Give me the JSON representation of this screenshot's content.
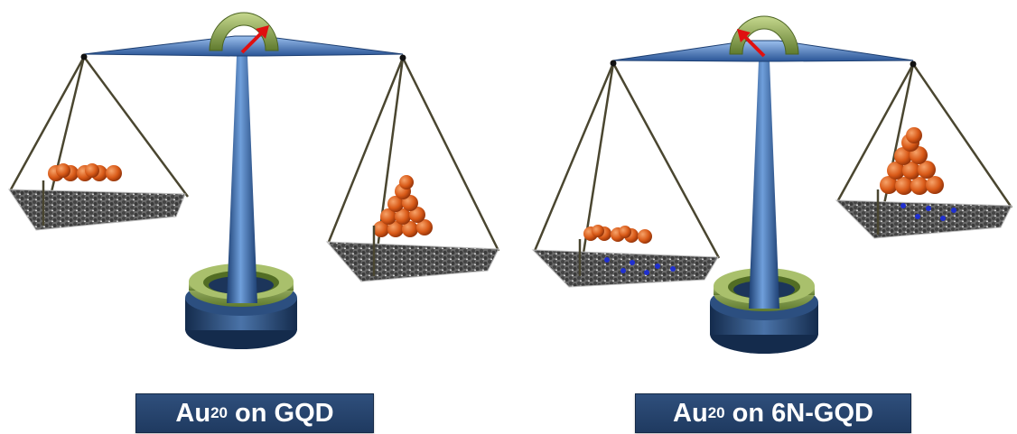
{
  "panels": [
    {
      "label_prefix": "Au",
      "label_sub": "20",
      "label_suffix": " on GQD",
      "tilt": "left pan (flat Au20 on GQD) lower... balanced toward pyramid"
    },
    {
      "label_prefix": "Au",
      "label_sub": "20",
      "label_suffix": " on 6N-GQD",
      "tilt": "left pan (flat Au20 on 6N-GQD) lower"
    }
  ],
  "colors": {
    "beam": "#3f6fb3",
    "post": "#3a6db5",
    "base": "#22426b",
    "ring": "#8da55a",
    "gold_atom": "#d9621e",
    "graphene_carbon": "#555555",
    "hydrogen": "#e6e6e6",
    "nitrogen": "#1f2fd0",
    "indicator_arrow": "#e01010",
    "string": "#4a4630",
    "label_bg": "#263f6a",
    "label_text": "#ffffff"
  }
}
